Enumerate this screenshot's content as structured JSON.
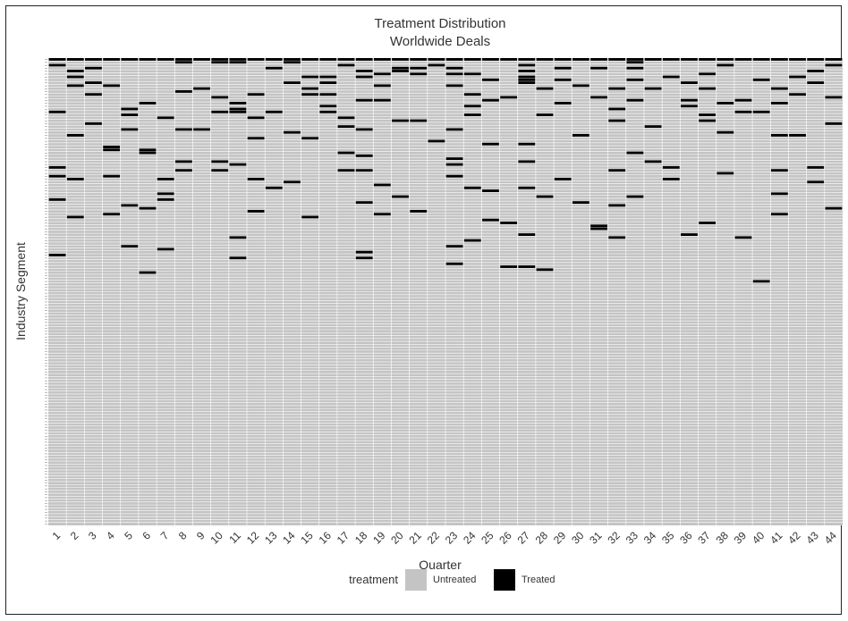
{
  "chart_data": {
    "type": "heatmap",
    "title": "Treatment Distribution",
    "subtitle": "Worldwide Deals",
    "xlabel": "Quarter",
    "ylabel": "Industry Segment",
    "x": [
      1,
      2,
      3,
      4,
      5,
      6,
      7,
      8,
      9,
      10,
      11,
      12,
      13,
      14,
      15,
      16,
      17,
      18,
      19,
      20,
      21,
      22,
      23,
      24,
      25,
      26,
      27,
      28,
      29,
      30,
      31,
      32,
      33,
      34,
      35,
      36,
      37,
      38,
      39,
      40,
      41,
      42,
      43,
      44
    ],
    "segments_count": 160,
    "legend": {
      "title": "treatment",
      "position": "bottom",
      "entries": [
        {
          "label": "Untreated",
          "color": "#c4c4c4"
        },
        {
          "label": "Treated",
          "color": "#000000"
        }
      ]
    },
    "colors": {
      "untreated": "#c4c4c4",
      "treated": "#000000",
      "grid": "#ffffff"
    },
    "treated_cells": [
      [
        1,
        0
      ],
      [
        1,
        2
      ],
      [
        1,
        18
      ],
      [
        1,
        37
      ],
      [
        1,
        40
      ],
      [
        1,
        48
      ],
      [
        1,
        67
      ],
      [
        2,
        0
      ],
      [
        2,
        4
      ],
      [
        2,
        6
      ],
      [
        2,
        9
      ],
      [
        2,
        26
      ],
      [
        2,
        41
      ],
      [
        2,
        54
      ],
      [
        3,
        0
      ],
      [
        3,
        3
      ],
      [
        3,
        8
      ],
      [
        3,
        12
      ],
      [
        3,
        22
      ],
      [
        4,
        0
      ],
      [
        4,
        9
      ],
      [
        4,
        30
      ],
      [
        4,
        31
      ],
      [
        4,
        40
      ],
      [
        4,
        53
      ],
      [
        5,
        0
      ],
      [
        5,
        17
      ],
      [
        5,
        19
      ],
      [
        5,
        24
      ],
      [
        5,
        50
      ],
      [
        5,
        64
      ],
      [
        6,
        0
      ],
      [
        6,
        15
      ],
      [
        6,
        31
      ],
      [
        6,
        32
      ],
      [
        6,
        51
      ],
      [
        6,
        73
      ],
      [
        7,
        0
      ],
      [
        7,
        20
      ],
      [
        7,
        41
      ],
      [
        7,
        46
      ],
      [
        7,
        48
      ],
      [
        7,
        65
      ],
      [
        8,
        0
      ],
      [
        8,
        1
      ],
      [
        8,
        11
      ],
      [
        8,
        24
      ],
      [
        8,
        35
      ],
      [
        8,
        38
      ],
      [
        9,
        0
      ],
      [
        9,
        10
      ],
      [
        9,
        24
      ],
      [
        10,
        0
      ],
      [
        10,
        1
      ],
      [
        10,
        13
      ],
      [
        10,
        18
      ],
      [
        10,
        35
      ],
      [
        10,
        38
      ],
      [
        11,
        0
      ],
      [
        11,
        1
      ],
      [
        11,
        15
      ],
      [
        11,
        17
      ],
      [
        11,
        18
      ],
      [
        11,
        36
      ],
      [
        11,
        61
      ],
      [
        11,
        68
      ],
      [
        12,
        0
      ],
      [
        12,
        12
      ],
      [
        12,
        20
      ],
      [
        12,
        27
      ],
      [
        12,
        41
      ],
      [
        12,
        52
      ],
      [
        13,
        0
      ],
      [
        13,
        3
      ],
      [
        13,
        18
      ],
      [
        13,
        44
      ],
      [
        14,
        0
      ],
      [
        14,
        1
      ],
      [
        14,
        8
      ],
      [
        14,
        25
      ],
      [
        14,
        42
      ],
      [
        15,
        0
      ],
      [
        15,
        6
      ],
      [
        15,
        10
      ],
      [
        15,
        12
      ],
      [
        15,
        27
      ],
      [
        15,
        54
      ],
      [
        16,
        0
      ],
      [
        16,
        6
      ],
      [
        16,
        8
      ],
      [
        16,
        12
      ],
      [
        16,
        16
      ],
      [
        16,
        18
      ],
      [
        17,
        0
      ],
      [
        17,
        2
      ],
      [
        17,
        20
      ],
      [
        17,
        23
      ],
      [
        17,
        32
      ],
      [
        17,
        38
      ],
      [
        18,
        0
      ],
      [
        18,
        4
      ],
      [
        18,
        6
      ],
      [
        18,
        14
      ],
      [
        18,
        24
      ],
      [
        18,
        33
      ],
      [
        18,
        38
      ],
      [
        18,
        49
      ],
      [
        18,
        66
      ],
      [
        18,
        68
      ],
      [
        19,
        0
      ],
      [
        19,
        5
      ],
      [
        19,
        9
      ],
      [
        19,
        14
      ],
      [
        19,
        43
      ],
      [
        19,
        53
      ],
      [
        20,
        0
      ],
      [
        20,
        3
      ],
      [
        20,
        4
      ],
      [
        20,
        21
      ],
      [
        20,
        47
      ],
      [
        21,
        0
      ],
      [
        21,
        3
      ],
      [
        21,
        5
      ],
      [
        21,
        21
      ],
      [
        21,
        52
      ],
      [
        22,
        0
      ],
      [
        22,
        2
      ],
      [
        22,
        28
      ],
      [
        23,
        0
      ],
      [
        23,
        3
      ],
      [
        23,
        5
      ],
      [
        23,
        9
      ],
      [
        23,
        24
      ],
      [
        23,
        34
      ],
      [
        23,
        36
      ],
      [
        23,
        40
      ],
      [
        23,
        64
      ],
      [
        23,
        70
      ],
      [
        24,
        0
      ],
      [
        24,
        5
      ],
      [
        24,
        12
      ],
      [
        24,
        16
      ],
      [
        24,
        19
      ],
      [
        24,
        44
      ],
      [
        24,
        62
      ],
      [
        25,
        0
      ],
      [
        25,
        7
      ],
      [
        25,
        14
      ],
      [
        25,
        29
      ],
      [
        25,
        45
      ],
      [
        25,
        55
      ],
      [
        26,
        0
      ],
      [
        26,
        13
      ],
      [
        26,
        56
      ],
      [
        26,
        71
      ],
      [
        27,
        0
      ],
      [
        27,
        2
      ],
      [
        27,
        4
      ],
      [
        27,
        6
      ],
      [
        27,
        7
      ],
      [
        27,
        8
      ],
      [
        27,
        29
      ],
      [
        27,
        35
      ],
      [
        27,
        44
      ],
      [
        27,
        60
      ],
      [
        27,
        71
      ],
      [
        28,
        0
      ],
      [
        28,
        10
      ],
      [
        28,
        19
      ],
      [
        28,
        47
      ],
      [
        28,
        72
      ],
      [
        29,
        0
      ],
      [
        29,
        3
      ],
      [
        29,
        7
      ],
      [
        29,
        15
      ],
      [
        29,
        41
      ],
      [
        30,
        0
      ],
      [
        30,
        9
      ],
      [
        30,
        26
      ],
      [
        30,
        49
      ],
      [
        31,
        0
      ],
      [
        31,
        3
      ],
      [
        31,
        13
      ],
      [
        31,
        57
      ],
      [
        31,
        58
      ],
      [
        32,
        0
      ],
      [
        32,
        10
      ],
      [
        32,
        17
      ],
      [
        32,
        21
      ],
      [
        32,
        38
      ],
      [
        32,
        50
      ],
      [
        32,
        61
      ],
      [
        33,
        0
      ],
      [
        33,
        1
      ],
      [
        33,
        3
      ],
      [
        33,
        7
      ],
      [
        33,
        14
      ],
      [
        33,
        32
      ],
      [
        33,
        47
      ],
      [
        34,
        0
      ],
      [
        34,
        10
      ],
      [
        34,
        23
      ],
      [
        34,
        35
      ],
      [
        35,
        0
      ],
      [
        35,
        6
      ],
      [
        35,
        37
      ],
      [
        35,
        41
      ],
      [
        36,
        0
      ],
      [
        36,
        8
      ],
      [
        36,
        14
      ],
      [
        36,
        16
      ],
      [
        36,
        60
      ],
      [
        37,
        0
      ],
      [
        37,
        5
      ],
      [
        37,
        10
      ],
      [
        37,
        19
      ],
      [
        37,
        21
      ],
      [
        37,
        56
      ],
      [
        38,
        0
      ],
      [
        38,
        2
      ],
      [
        38,
        15
      ],
      [
        38,
        25
      ],
      [
        38,
        39
      ],
      [
        39,
        0
      ],
      [
        39,
        14
      ],
      [
        39,
        18
      ],
      [
        39,
        61
      ],
      [
        40,
        0
      ],
      [
        40,
        7
      ],
      [
        40,
        18
      ],
      [
        40,
        76
      ],
      [
        41,
        0
      ],
      [
        41,
        10
      ],
      [
        41,
        15
      ],
      [
        41,
        26
      ],
      [
        41,
        38
      ],
      [
        41,
        46
      ],
      [
        41,
        53
      ],
      [
        42,
        0
      ],
      [
        42,
        6
      ],
      [
        42,
        12
      ],
      [
        42,
        26
      ],
      [
        43,
        0
      ],
      [
        43,
        4
      ],
      [
        43,
        8
      ],
      [
        43,
        37
      ],
      [
        43,
        42
      ],
      [
        44,
        0
      ],
      [
        44,
        2
      ],
      [
        44,
        13
      ],
      [
        44,
        22
      ],
      [
        44,
        51
      ]
    ]
  }
}
